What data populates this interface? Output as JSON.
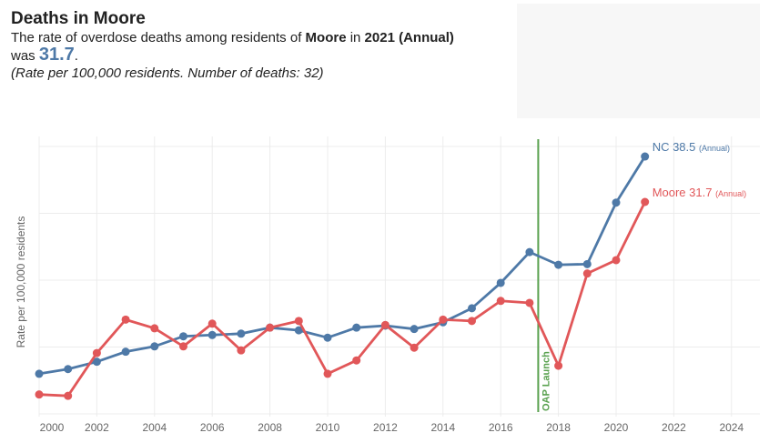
{
  "header": {
    "title": "Deaths in Moore",
    "line1_pre": "The rate of overdose deaths among residents of ",
    "county": "Moore",
    "line1_mid": " in ",
    "year": "2021",
    "period": "(Annual)",
    "was": "was ",
    "value": "31.7",
    "period_end": ".",
    "note": "(Rate per 100,000 residents. Number of deaths: 32)"
  },
  "chart_data": {
    "type": "line",
    "ylabel": "Rate per 100,000 residents",
    "xlim": [
      2000,
      2025
    ],
    "ylim": [
      0,
      40
    ],
    "grid": true,
    "x_ticks": [
      "2000",
      "2002",
      "2004",
      "2006",
      "2008",
      "2010",
      "2012",
      "2014",
      "2016",
      "2018",
      "2020",
      "2022",
      "2024"
    ],
    "x": [
      2000,
      2001,
      2002,
      2003,
      2004,
      2005,
      2006,
      2007,
      2008,
      2009,
      2010,
      2011,
      2012,
      2013,
      2014,
      2015,
      2016,
      2017,
      2018,
      2019,
      2020,
      2021
    ],
    "series": [
      {
        "name": "NC",
        "color": "#4e79a7",
        "end_label_value": "38.5",
        "end_label_period": "(Annual)",
        "values": [
          6.0,
          6.7,
          7.8,
          9.3,
          10.1,
          11.6,
          11.8,
          12.0,
          12.9,
          12.5,
          11.4,
          12.9,
          13.2,
          12.7,
          13.7,
          15.8,
          19.6,
          24.2,
          22.3,
          22.4,
          31.6,
          38.5
        ]
      },
      {
        "name": "Moore",
        "color": "#e15759",
        "end_label_value": "31.7",
        "end_label_period": "(Annual)",
        "values": [
          2.9,
          2.7,
          9.1,
          14.1,
          12.8,
          10.1,
          13.5,
          9.5,
          12.9,
          13.9,
          6.0,
          8.0,
          13.3,
          9.9,
          14.1,
          13.9,
          16.9,
          16.6,
          7.2,
          21.0,
          23.0,
          31.7
        ]
      }
    ],
    "annotation": {
      "label": "OAP Launch",
      "x": 2017.3,
      "color": "#59a14f"
    }
  }
}
